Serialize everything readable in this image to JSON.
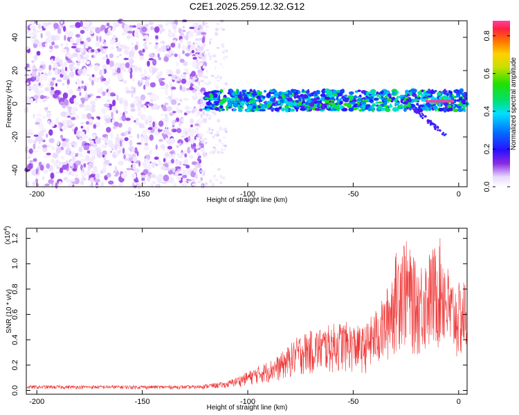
{
  "title": "C2E1.2025.259.12.32.G12",
  "chart_data": [
    {
      "type": "heatmap",
      "name": "spectrogram",
      "xlabel": "Height of straight line (km)",
      "ylabel": "Frequency (Hz)",
      "xlim": [
        -205,
        4
      ],
      "ylim": [
        -50,
        50
      ],
      "xticks": [
        -200,
        -150,
        -100,
        -50,
        0
      ],
      "xtick_labels": [
        "-200",
        "-150",
        "-100",
        "-50",
        "0"
      ],
      "yticks": [
        -40,
        -20,
        0,
        20,
        40
      ],
      "ytick_labels": [
        "-40",
        "-20",
        "0",
        "20",
        "40"
      ],
      "colorbar": {
        "label": "Normalized spectral amplitude",
        "range": [
          0,
          0.88
        ],
        "ticks": [
          0.0,
          0.2,
          0.4,
          0.6,
          0.8
        ],
        "tick_labels": [
          "0.0",
          "0.2",
          "0.4",
          "0.6",
          "0.8"
        ]
      },
      "regions": [
        {
          "desc": "broadband noise",
          "x": [
            -205,
            -120
          ],
          "freq": [
            -50,
            50
          ],
          "amplitude": [
            0.02,
            0.12
          ]
        },
        {
          "desc": "sparse noise",
          "x": [
            -125,
            -110
          ],
          "freq": [
            -50,
            50
          ],
          "amplitude": [
            0.01,
            0.06
          ]
        },
        {
          "desc": "signal band",
          "x": [
            -120,
            4
          ],
          "freq_center": 2,
          "freq_halfwidth": 6,
          "amplitude": [
            0.15,
            0.55
          ]
        },
        {
          "desc": "strong tone",
          "x": [
            -15,
            -3
          ],
          "freq_center": 1.5,
          "amplitude": 0.88
        }
      ]
    },
    {
      "type": "line",
      "name": "snr",
      "xlabel": "Height of straight line (km)",
      "ylabel": "SNR (10 * v/v)",
      "multiplier": "(x10",
      "multiplier_exp": "4",
      "multiplier_close": ")",
      "xlim": [
        -205,
        4
      ],
      "ylim": [
        -0.03,
        1.28
      ],
      "xticks": [
        -200,
        -150,
        -100,
        -50,
        0
      ],
      "xtick_labels": [
        "-200",
        "-150",
        "-100",
        "-50",
        "0"
      ],
      "yticks": [
        0.0,
        0.2,
        0.4,
        0.6,
        0.8,
        1.0,
        1.2
      ],
      "ytick_labels": [
        "0.0",
        "0.2",
        "0.4",
        "0.6",
        "0.8",
        "1.0",
        "1.2"
      ],
      "color": "#ee3333",
      "envelope": [
        {
          "x": -205,
          "max": 0.04
        },
        {
          "x": -125,
          "max": 0.04
        },
        {
          "x": -110,
          "max": 0.07
        },
        {
          "x": -100,
          "max": 0.15
        },
        {
          "x": -85,
          "max": 0.28
        },
        {
          "x": -75,
          "max": 0.45
        },
        {
          "x": -65,
          "max": 0.5
        },
        {
          "x": -55,
          "max": 0.55
        },
        {
          "x": -45,
          "max": 0.5
        },
        {
          "x": -35,
          "max": 0.75
        },
        {
          "x": -27,
          "max": 1.27
        },
        {
          "x": -20,
          "max": 1.0
        },
        {
          "x": -14,
          "max": 1.1
        },
        {
          "x": -8,
          "max": 1.22
        },
        {
          "x": -4,
          "max": 0.9
        },
        {
          "x": 0,
          "max": 0.85
        },
        {
          "x": 4,
          "max": 0.9
        }
      ]
    }
  ]
}
